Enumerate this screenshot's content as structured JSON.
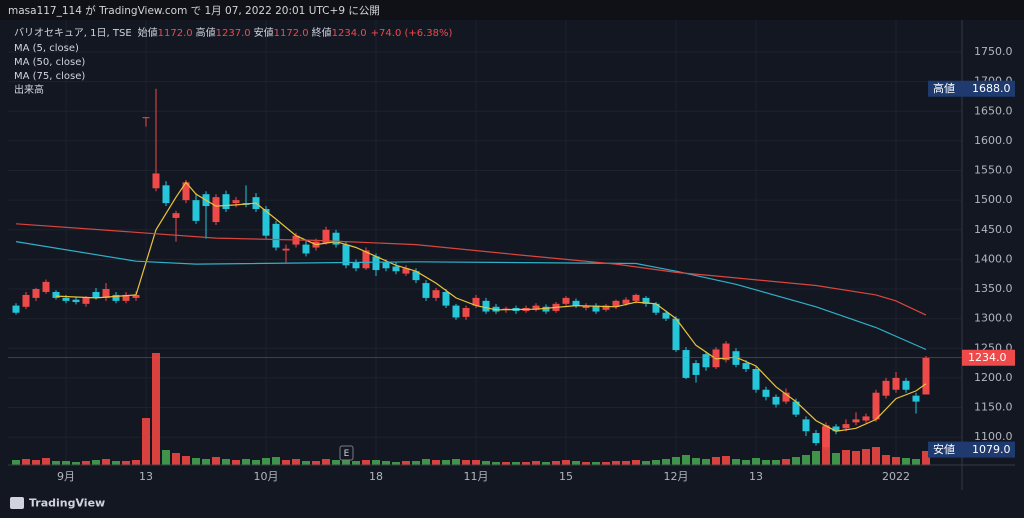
{
  "top_bar": "masa117_114 が TradingView.com で 1月 07, 2022 20:01 UTC+9 に公開",
  "brand": "TradingView",
  "chart_data": {
    "type": "candlestick",
    "title": "バリオセキュア, 1日, TSE",
    "legend_values": [
      {
        "name": "始値",
        "text": "1172.0"
      },
      {
        "name": "高値",
        "text": "1237.0"
      },
      {
        "name": "安値",
        "text": "1172.0"
      },
      {
        "name": "終値",
        "text": "1234.0"
      }
    ],
    "change": "+74.0 (+6.38%)",
    "indicators": [
      "MA (5, close)",
      "MA (50, close)",
      "MA (75, close)",
      "出来高"
    ],
    "earnings_marker": "E",
    "up_color": "#ef4a4a",
    "down_color": "#26c6da",
    "volume_up_color": "#d9413f",
    "volume_down_color": "#3f9449",
    "open": [
      1322,
      1320,
      1335,
      1345,
      1345,
      1335,
      1332,
      1325,
      1345,
      1335,
      1340,
      1330,
      1335,
      1640,
      1520,
      1525,
      1470,
      1500,
      1500,
      1510,
      1463,
      1510,
      1495,
      1495,
      1505,
      1485,
      1460,
      1415,
      1425,
      1425,
      1420,
      1428,
      1445,
      1425,
      1395,
      1385,
      1405,
      1395,
      1388,
      1376,
      1380,
      1360,
      1335,
      1345,
      1322,
      1303,
      1322,
      1330,
      1320,
      1315,
      1318,
      1313,
      1315,
      1320,
      1313,
      1325,
      1330,
      1318,
      1322,
      1315,
      1320,
      1325,
      1330,
      1335,
      1325,
      1310,
      1300,
      1247,
      1225,
      1240,
      1218,
      1230,
      1245,
      1225,
      1215,
      1180,
      1168,
      1160,
      1160,
      1130,
      1107,
      1083,
      1118,
      1115,
      1125,
      1128,
      1130,
      1170,
      1180,
      1195,
      1170,
      1172
    ],
    "high": [
      1326,
      1345,
      1352,
      1366,
      1348,
      1340,
      1336,
      1338,
      1352,
      1360,
      1345,
      1345,
      1346,
      1640,
      1688,
      1532,
      1482,
      1534,
      1512,
      1515,
      1510,
      1516,
      1505,
      1525,
      1512,
      1490,
      1465,
      1425,
      1445,
      1432,
      1435,
      1455,
      1450,
      1430,
      1400,
      1420,
      1410,
      1400,
      1395,
      1390,
      1385,
      1365,
      1352,
      1350,
      1325,
      1322,
      1340,
      1335,
      1325,
      1320,
      1322,
      1322,
      1326,
      1324,
      1328,
      1338,
      1334,
      1326,
      1326,
      1325,
      1332,
      1336,
      1342,
      1338,
      1328,
      1314,
      1304,
      1252,
      1230,
      1245,
      1252,
      1262,
      1250,
      1230,
      1220,
      1185,
      1172,
      1182,
      1165,
      1135,
      1112,
      1125,
      1122,
      1130,
      1142,
      1140,
      1180,
      1200,
      1210,
      1200,
      1175,
      1237
    ],
    "low": [
      1307,
      1316,
      1330,
      1342,
      1332,
      1326,
      1324,
      1320,
      1332,
      1330,
      1326,
      1326,
      1330,
      1624,
      1515,
      1490,
      1430,
      1495,
      1460,
      1435,
      1458,
      1480,
      1488,
      1488,
      1480,
      1435,
      1415,
      1395,
      1420,
      1405,
      1415,
      1425,
      1420,
      1385,
      1380,
      1382,
      1372,
      1380,
      1375,
      1372,
      1360,
      1330,
      1330,
      1318,
      1298,
      1298,
      1318,
      1308,
      1308,
      1310,
      1308,
      1310,
      1312,
      1308,
      1310,
      1322,
      1318,
      1314,
      1308,
      1312,
      1316,
      1322,
      1326,
      1320,
      1306,
      1296,
      1244,
      1198,
      1192,
      1212,
      1215,
      1226,
      1218,
      1210,
      1175,
      1162,
      1150,
      1156,
      1134,
      1102,
      1086,
      1079,
      1105,
      1110,
      1120,
      1124,
      1126,
      1165,
      1175,
      1175,
      1140,
      1172
    ],
    "close": [
      1310,
      1340,
      1350,
      1362,
      1335,
      1330,
      1328,
      1335,
      1335,
      1350,
      1330,
      1340,
      1340,
      1640,
      1545,
      1495,
      1478,
      1530,
      1465,
      1490,
      1505,
      1485,
      1500,
      1492,
      1485,
      1440,
      1420,
      1418,
      1440,
      1410,
      1430,
      1450,
      1425,
      1390,
      1385,
      1415,
      1382,
      1385,
      1380,
      1385,
      1365,
      1335,
      1348,
      1322,
      1302,
      1318,
      1335,
      1312,
      1312,
      1317,
      1313,
      1318,
      1322,
      1312,
      1325,
      1335,
      1322,
      1322,
      1312,
      1322,
      1330,
      1332,
      1340,
      1325,
      1310,
      1300,
      1247,
      1200,
      1205,
      1218,
      1248,
      1258,
      1222,
      1215,
      1180,
      1168,
      1155,
      1175,
      1138,
      1110,
      1090,
      1120,
      1110,
      1122,
      1130,
      1135,
      1175,
      1195,
      1200,
      1180,
      1160,
      1234
    ],
    "volume": [
      5,
      6,
      5,
      7,
      4,
      4,
      3,
      4,
      5,
      6,
      4,
      4,
      5,
      47,
      112,
      15,
      12,
      9,
      7,
      6,
      8,
      6,
      5,
      6,
      5,
      7,
      8,
      5,
      6,
      4,
      4,
      6,
      5,
      6,
      4,
      5,
      5,
      4,
      3,
      4,
      4,
      6,
      5,
      5,
      6,
      5,
      5,
      4,
      3,
      3,
      3,
      3,
      4,
      3,
      4,
      5,
      4,
      3,
      3,
      3,
      4,
      4,
      5,
      4,
      5,
      6,
      8,
      10,
      7,
      6,
      8,
      9,
      6,
      5,
      7,
      5,
      5,
      6,
      8,
      10,
      14,
      38,
      12,
      15,
      14,
      16,
      18,
      10,
      8,
      7,
      6,
      14
    ],
    "lines": [
      {
        "name": "MA (5, close)",
        "color": "#e8c33a",
        "x": [
          4,
          8,
          12,
          14,
          16,
          17,
          18,
          20,
          22,
          24,
          26,
          28,
          30,
          32,
          34,
          36,
          38,
          40,
          42,
          44,
          46,
          48,
          52,
          56,
          60,
          62,
          64,
          66,
          68,
          70,
          72,
          74,
          76,
          78,
          80,
          82,
          84,
          86,
          88,
          90,
          91
        ],
        "values": [
          1338,
          1335,
          1340,
          1450,
          1505,
          1530,
          1510,
          1490,
          1492,
          1495,
          1468,
          1440,
          1425,
          1430,
          1420,
          1405,
          1390,
          1380,
          1360,
          1335,
          1322,
          1315,
          1316,
          1322,
          1320,
          1328,
          1325,
          1300,
          1255,
          1232,
          1235,
          1220,
          1185,
          1160,
          1128,
          1110,
          1115,
          1130,
          1165,
          1178,
          1190
        ]
      },
      {
        "name": "MA (50, close)",
        "color": "#2fb0c8",
        "x": [
          0,
          12,
          18,
          40,
          62,
          66,
          72,
          80,
          86,
          91
        ],
        "values": [
          1430,
          1397,
          1392,
          1396,
          1393,
          1380,
          1358,
          1320,
          1285,
          1248
        ]
      },
      {
        "name": "MA (75, close)",
        "color": "#d9463f",
        "x": [
          0,
          10,
          20,
          30,
          40,
          50,
          60,
          66,
          70,
          80,
          86,
          88,
          91
        ],
        "values": [
          1460,
          1448,
          1436,
          1432,
          1425,
          1408,
          1392,
          1378,
          1372,
          1356,
          1340,
          1330,
          1306
        ]
      }
    ],
    "xlim": [
      -0.8,
      94.6
    ],
    "xticks": [
      {
        "value": 5,
        "label": "9月"
      },
      13,
      {
        "value": 25,
        "label": "10月"
      },
      {
        "value": 36,
        "label": "18"
      },
      {
        "value": 46,
        "label": "11月"
      },
      {
        "value": 55,
        "label": "15"
      },
      {
        "value": 66,
        "label": "12月"
      },
      {
        "value": 74,
        "label": "13"
      },
      {
        "value": 88,
        "label": "2022"
      }
    ],
    "ylim": [
      1053,
      1804
    ],
    "yticks": [
      {
        "value": 1100,
        "label": "1100.0"
      },
      {
        "value": 1150,
        "label": "1150.0"
      },
      {
        "value": 1200,
        "label": "1200.0"
      },
      {
        "value": 1250,
        "label": "1250.0"
      },
      {
        "value": 1300,
        "label": "1300.0"
      },
      {
        "value": 1350,
        "label": "1350.0"
      },
      {
        "value": 1400,
        "label": "1400.0"
      },
      {
        "value": 1450,
        "label": "1450.0"
      },
      {
        "value": 1500,
        "label": "1500.0"
      },
      {
        "value": 1550,
        "label": "1550.0"
      },
      {
        "value": 1600,
        "label": "1600.0"
      },
      {
        "value": 1650,
        "label": "1650.0"
      },
      {
        "value": 1700,
        "label": "1700.0"
      },
      {
        "value": 1750,
        "label": "1750.0"
      }
    ],
    "grid": true,
    "price_labels": [
      {
        "name": "高値",
        "value": 1688,
        "label": "1688.0",
        "color": "#1e3a6e"
      },
      {
        "name": "安値",
        "value": 1079,
        "label": "1079.0",
        "color": "#1e3a6e"
      }
    ],
    "last_price_label": {
      "value": 1234,
      "label": "1234.0",
      "color": "#ef4a4a"
    }
  }
}
